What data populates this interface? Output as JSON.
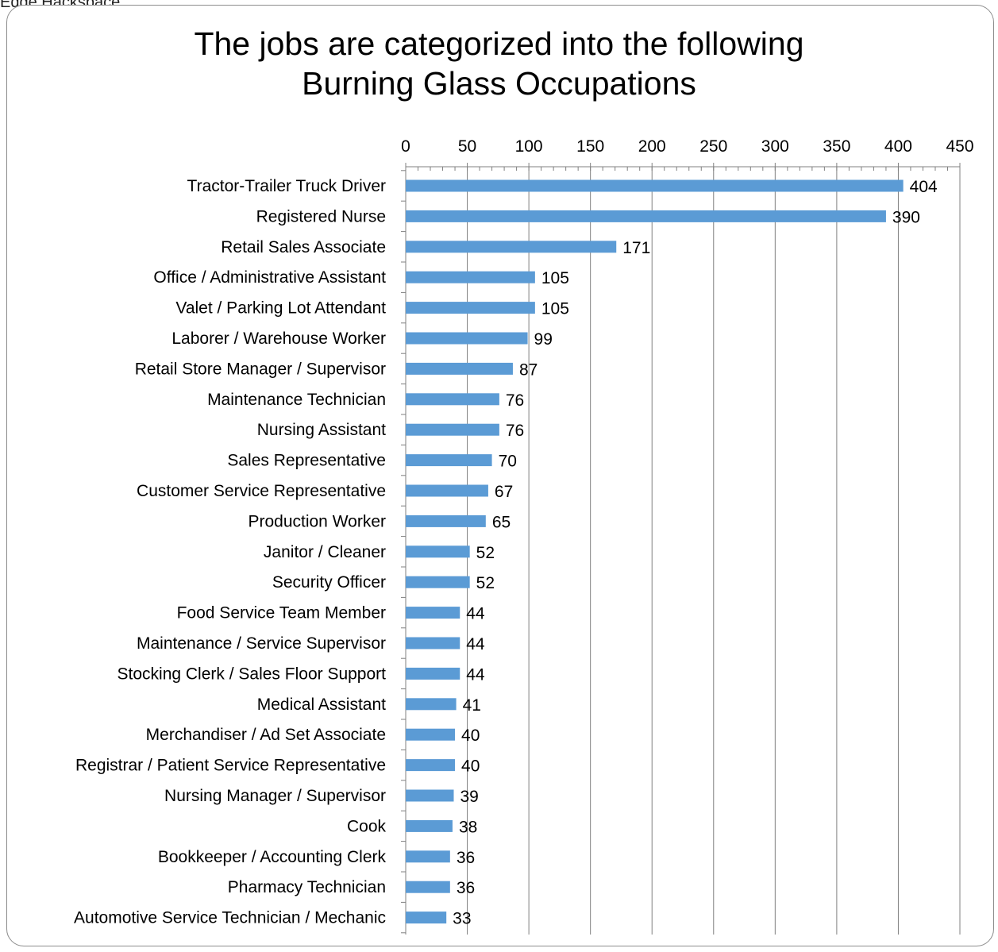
{
  "clip_label": "Edge Hackspace",
  "chart_data": {
    "type": "bar",
    "orientation": "horizontal",
    "title_lines": [
      "The jobs are categorized into the following",
      "Burning Glass Occupations"
    ],
    "xlabel": "",
    "ylabel": "",
    "xlim": [
      0,
      450
    ],
    "x_ticks": [
      "0",
      "50",
      "100",
      "150",
      "200",
      "250",
      "300",
      "350",
      "400",
      "450"
    ],
    "x_axis_position": "top",
    "grid": true,
    "legend": "none",
    "bar_color": "#5b9bd5",
    "categories": [
      "Tractor-Trailer Truck Driver",
      "Registered Nurse",
      "Retail Sales Associate",
      "Office / Administrative Assistant",
      "Valet / Parking Lot Attendant",
      "Laborer / Warehouse Worker",
      "Retail Store Manager / Supervisor",
      "Maintenance Technician",
      "Nursing Assistant",
      "Sales Representative",
      "Customer Service Representative",
      "Production Worker",
      "Janitor / Cleaner",
      "Security Officer",
      "Food Service Team Member",
      "Maintenance / Service Supervisor",
      "Stocking Clerk / Sales Floor Support",
      "Medical Assistant",
      "Merchandiser / Ad Set Associate",
      "Registrar / Patient Service Representative",
      "Nursing Manager / Supervisor",
      "Cook",
      "Bookkeeper / Accounting Clerk",
      "Pharmacy Technician",
      "Automotive Service Technician / Mechanic"
    ],
    "values": [
      404,
      390,
      171,
      105,
      105,
      99,
      87,
      76,
      76,
      70,
      67,
      65,
      52,
      52,
      44,
      44,
      44,
      41,
      40,
      40,
      39,
      38,
      36,
      36,
      33
    ]
  }
}
